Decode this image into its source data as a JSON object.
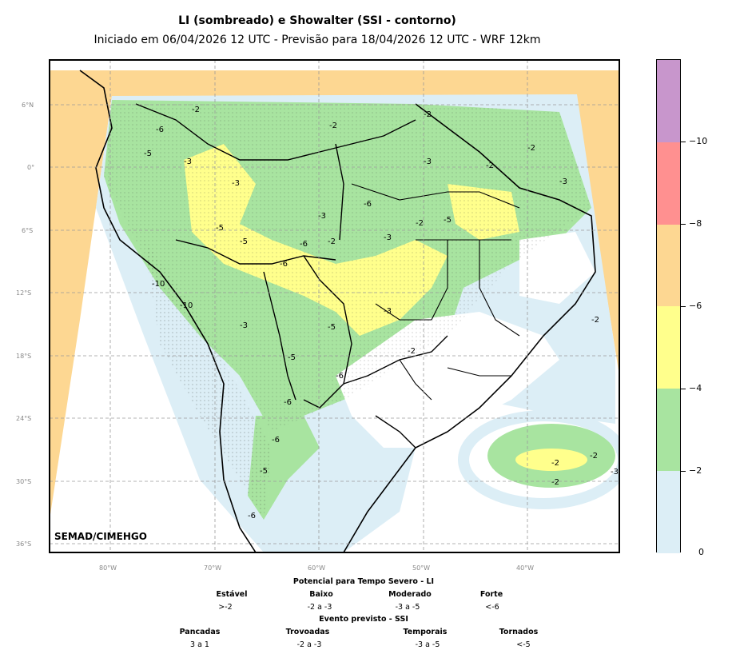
{
  "title": "LI (sombreado) e Showalter (SSI - contorno)",
  "subtitle": "Iniciado em 06/04/2026 12 UTC - Previsão para 18/04/2026 12 UTC - WRF 12km",
  "credit": "SEMAD/CIMEHGO",
  "lat_labels": [
    "6°N",
    "0°",
    "6°S",
    "12°S",
    "18°S",
    "24°S",
    "30°S",
    "36°S"
  ],
  "lon_labels": [
    "80°W",
    "70°W",
    "60°W",
    "50°W",
    "40°W"
  ],
  "colorbar": {
    "ticks": [
      "−10",
      "−8",
      "−6",
      "−4",
      "−2",
      "0"
    ],
    "colors": [
      "#c896cc",
      "#ff9090",
      "#fdd792",
      "#ffff8c",
      "#a8e4a0",
      "#dceef6"
    ]
  },
  "legend": {
    "li_title": "Potencial para Tempo Severo - LI",
    "li_categories": [
      {
        "label": "Estável",
        "range": ">-2"
      },
      {
        "label": "Baixo",
        "range": "-2 a -3"
      },
      {
        "label": "Moderado",
        "range": "-3 a -5"
      },
      {
        "label": "Forte",
        "range": "<-6"
      }
    ],
    "ssi_title": "Evento previsto - SSI",
    "ssi_categories": [
      {
        "label": "Pancadas",
        "range": "3 a 1"
      },
      {
        "label": "Trovoadas",
        "range": "-2 a -3"
      },
      {
        "label": "Temporais",
        "range": "-3 a -5"
      },
      {
        "label": "Tornados",
        "range": "<-5"
      }
    ]
  },
  "contour_labels": [
    "-2",
    "-3",
    "-5",
    "-6",
    "-10"
  ]
}
